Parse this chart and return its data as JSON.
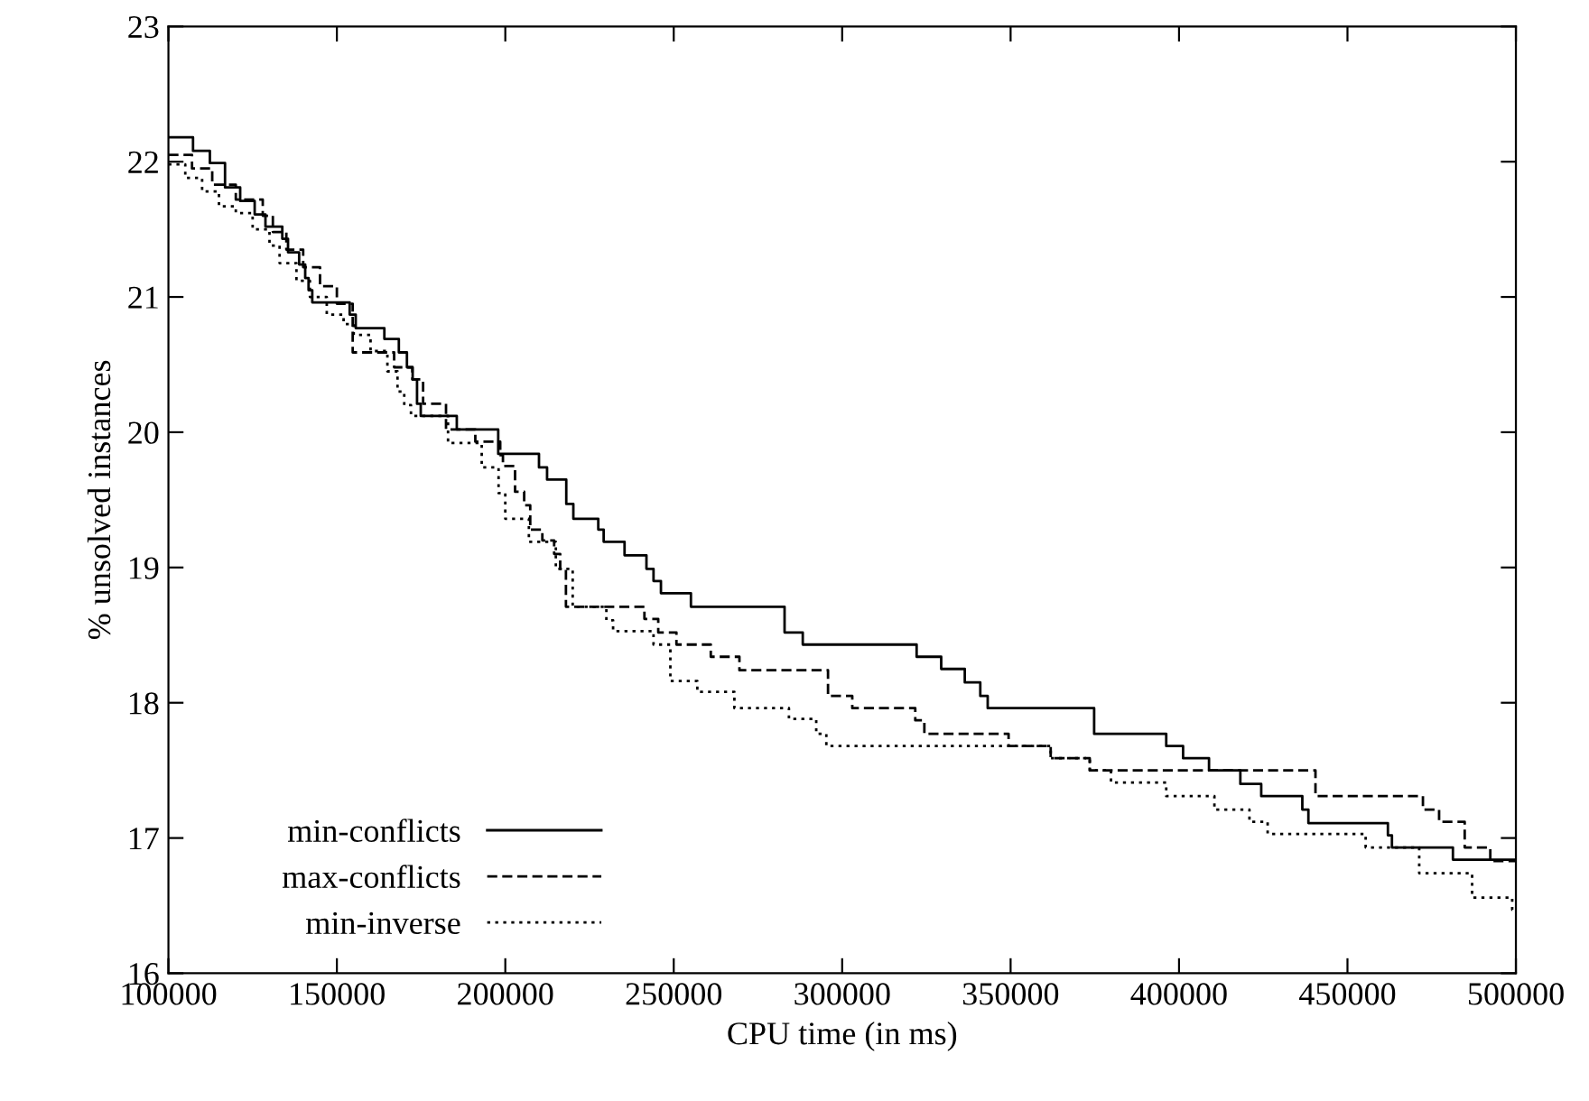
{
  "chart_data": {
    "type": "step",
    "xlabel": "CPU time (in ms)",
    "ylabel": "% unsolved instances",
    "xlim": [
      100000,
      500000
    ],
    "xticks": [
      100000,
      150000,
      200000,
      250000,
      300000,
      350000,
      400000,
      450000,
      500000
    ],
    "ylim": [
      16,
      23
    ],
    "yticks": [
      16,
      17,
      18,
      19,
      20,
      21,
      22,
      23
    ],
    "grid": false,
    "legend": "bottom left",
    "series": [
      {
        "name": "min-conflicts",
        "color": "#000000",
        "line_style": "solid",
        "x": [
          100000,
          107300,
          112300,
          116800,
          121300,
          125600,
          128800,
          133800,
          135500,
          138800,
          140600,
          141600,
          142700,
          153800,
          155600,
          164100,
          168400,
          170800,
          172500,
          173800,
          174900,
          185600,
          197900,
          210000,
          212400,
          218100,
          220200,
          227600,
          229200,
          235400,
          241900,
          244000,
          246200,
          255100,
          282900,
          288300,
          322100,
          329400,
          336400,
          341000,
          343200,
          374800,
          396200,
          401200,
          408900,
          418200,
          424400,
          436600,
          438400,
          462000,
          463200,
          481300,
          500000
        ],
        "values": [
          22.18,
          22.08,
          21.99,
          21.81,
          21.71,
          21.61,
          21.52,
          21.43,
          21.33,
          21.24,
          21.14,
          21.05,
          20.96,
          20.87,
          20.77,
          20.69,
          20.59,
          20.48,
          20.39,
          20.21,
          20.12,
          20.02,
          19.84,
          19.74,
          19.65,
          19.47,
          19.36,
          19.28,
          19.19,
          19.09,
          18.99,
          18.9,
          18.81,
          18.71,
          18.52,
          18.43,
          18.34,
          18.25,
          18.15,
          18.05,
          17.96,
          17.77,
          17.68,
          17.59,
          17.5,
          17.4,
          17.31,
          17.21,
          17.11,
          17.02,
          16.93,
          16.84,
          16.84
        ]
      },
      {
        "name": "max-conflicts",
        "color": "#000000",
        "line_style": "dashed",
        "x": [
          100000,
          107000,
          113000,
          120000,
          128000,
          131000,
          135000,
          140000,
          145000,
          150000,
          154700,
          167000,
          172400,
          175600,
          182400,
          191100,
          198500,
          199300,
          202900,
          205600,
          207400,
          211000,
          214500,
          216300,
          218000,
          241300,
          245400,
          250800,
          261000,
          269500,
          295800,
          303000,
          321700,
          324400,
          349400,
          361900,
          373500,
          440500,
          472400,
          477200,
          484800,
          492400,
          500000
        ],
        "values": [
          22.05,
          21.95,
          21.83,
          21.72,
          21.6,
          21.48,
          21.35,
          21.22,
          21.08,
          20.95,
          20.59,
          20.48,
          20.39,
          20.21,
          20.02,
          19.93,
          19.83,
          19.75,
          19.56,
          19.46,
          19.28,
          19.2,
          19.1,
          18.99,
          18.71,
          18.62,
          18.52,
          18.43,
          18.34,
          18.24,
          18.05,
          17.96,
          17.87,
          17.77,
          17.68,
          17.59,
          17.5,
          17.31,
          17.21,
          17.12,
          16.93,
          16.83,
          16.83
        ]
      },
      {
        "name": "min-inverse",
        "color": "#000000",
        "line_style": "dotted",
        "x": [
          100000,
          105000,
          110000,
          115000,
          120000,
          125000,
          130000,
          133000,
          138000,
          142000,
          147000,
          152000,
          155000,
          160000,
          165000,
          168000,
          170000,
          172000,
          183000,
          193000,
          198000,
          200000,
          207000,
          215000,
          220000,
          230000,
          232000,
          244000,
          249000,
          257000,
          268000,
          284200,
          292300,
          295300,
          361900,
          373500,
          379800,
          396200,
          410500,
          420900,
          426300,
          455400,
          471300,
          487000,
          498900,
          500000
        ],
        "values": [
          21.98,
          21.88,
          21.78,
          21.67,
          21.62,
          21.5,
          21.38,
          21.25,
          21.12,
          21.0,
          20.87,
          20.8,
          20.72,
          20.6,
          20.45,
          20.3,
          20.2,
          20.12,
          19.92,
          19.74,
          19.55,
          19.36,
          19.19,
          18.99,
          18.71,
          18.61,
          18.53,
          18.43,
          18.16,
          18.08,
          17.96,
          17.88,
          17.77,
          17.68,
          17.59,
          17.5,
          17.41,
          17.31,
          17.21,
          17.12,
          17.03,
          16.93,
          16.74,
          16.56,
          16.47,
          16.47
        ]
      }
    ]
  }
}
